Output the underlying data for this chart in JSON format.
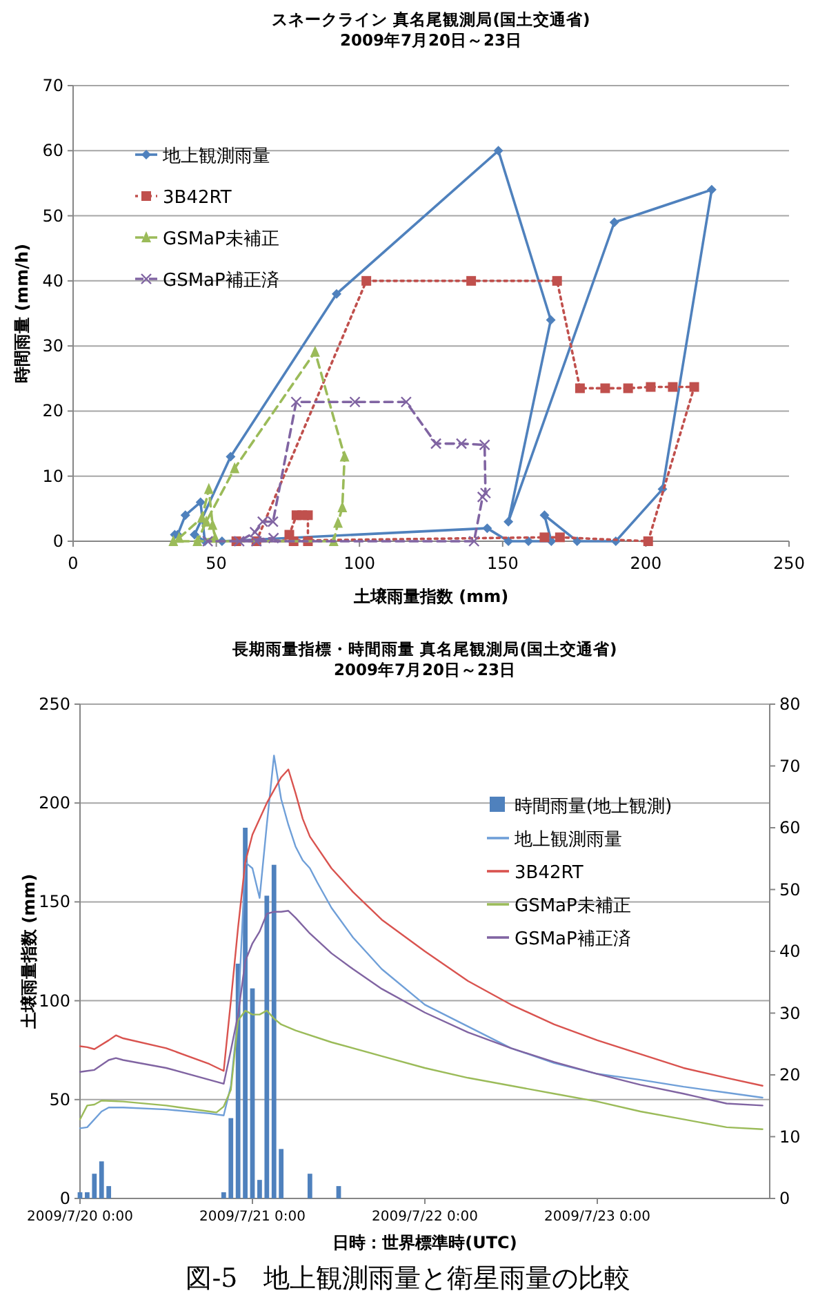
{
  "chart_data": [
    {
      "type": "line",
      "title": "スネークライン 真名尾観測局(国土交通省)\n2009年7月20日～23日",
      "xlabel": "土壌雨量指数 (mm)",
      "ylabel": "時間雨量 (mm/h)",
      "xlim": [
        0,
        250
      ],
      "xticks": [
        0,
        50,
        100,
        150,
        200,
        250
      ],
      "ylim": [
        0,
        70
      ],
      "yticks": [
        0,
        10,
        20,
        30,
        40,
        50,
        60,
        70
      ],
      "grid": "y",
      "legend": "top left",
      "series": [
        {
          "name": "地上観測雨量",
          "color": "#4f81bd",
          "marker": "diamond",
          "line_style": "solid",
          "x": [
            35.5,
            36.5,
            39.2,
            44.5,
            46,
            42.4,
            55,
            92,
            148.5,
            166.8,
            152,
            189,
            223,
            205.8,
            189.5,
            176,
            164.6,
            167,
            159,
            152,
            144.6,
            52
          ],
          "values": [
            1,
            1,
            4,
            6,
            0,
            1,
            13,
            38,
            60,
            34,
            3,
            49,
            54,
            8,
            0,
            0,
            4,
            0,
            0,
            0,
            2,
            0
          ]
        },
        {
          "name": "3B42RT",
          "color": "#c0504d",
          "marker": "square",
          "line_style": "dotted",
          "x": [
            77,
            75.5,
            78,
            80,
            82,
            82,
            64,
            102.4,
            139,
            169,
            177,
            185.8,
            193.8,
            201.7,
            209.4,
            216.9,
            200.8,
            170,
            164.6,
            57
          ],
          "values": [
            0,
            1,
            4,
            4,
            4,
            0,
            0,
            40,
            40,
            40,
            23.5,
            23.5,
            23.5,
            23.7,
            23.7,
            23.7,
            0,
            0.6,
            0.6,
            0
          ]
        },
        {
          "name": "GSMaP未補正",
          "color": "#9bbb59",
          "marker": "triangle",
          "line_style": "dashed",
          "x": [
            37,
            45,
            47.4,
            48.7,
            49.6,
            43.4,
            46.5,
            56.4,
            84.5,
            94.8,
            94,
            92.5,
            91,
            35
          ],
          "values": [
            0.5,
            3.6,
            8,
            2.5,
            0.5,
            0,
            3,
            11.2,
            29.1,
            13,
            5.2,
            2.8,
            0,
            0
          ]
        },
        {
          "name": "GSMaP補正済",
          "color": "#8064a2",
          "marker": "cross",
          "line_style": "dashed",
          "x": [
            64,
            70,
            58,
            63.5,
            66.2,
            69.8,
            77.9,
            98.4,
            116.3,
            126.7,
            135.6,
            143.7,
            144,
            143,
            140,
            47
          ],
          "values": [
            0,
            0.5,
            0,
            1.4,
            3,
            3,
            21.4,
            21.4,
            21.4,
            15,
            15,
            14.8,
            7.4,
            6.8,
            0,
            0
          ]
        }
      ]
    },
    {
      "type": "line",
      "title": "長期雨量指標・時間雨量 真名尾観測局(国土交通省)\n2009年7月20日～23日",
      "xlabel": "日時：世界標準時(UTC)",
      "ylabel": "土壌雨量指数 (mm)",
      "xlim": [
        "2009-07-20T00:00",
        "2009-07-24T00:00"
      ],
      "xticks": [
        {
          "value": "2009-07-20T00:00",
          "label": "2009/7/20 0:00"
        },
        {
          "value": "2009-07-21T00:00",
          "label": "2009/7/21 0:00"
        },
        {
          "value": "2009-07-22T00:00",
          "label": "2009/7/22 0:00"
        },
        {
          "value": "2009-07-23T00:00",
          "label": "2009/7/23 0:00"
        }
      ],
      "ylim": [
        0,
        250
      ],
      "yticks": [
        0,
        50,
        100,
        150,
        200,
        250
      ],
      "y2lim": [
        0,
        80
      ],
      "y2ticks": [
        0,
        10,
        20,
        30,
        40,
        50,
        60,
        70,
        80
      ],
      "grid": "y",
      "legend": "right",
      "marker": "none",
      "annotations": [
        "図-5　地上観測雨量と衛星雨量の比較"
      ],
      "series": [
        {
          "name": "時間雨量(地上観測)",
          "type": "bar",
          "axis": "y2",
          "color": "#4f81bd",
          "x": [
            "2009-07-20T00:00",
            "2009-07-20T01:00",
            "2009-07-20T02:00",
            "2009-07-20T03:00",
            "2009-07-20T04:00",
            "2009-07-20T20:00",
            "2009-07-20T21:00",
            "2009-07-20T22:00",
            "2009-07-20T23:00",
            "2009-07-21T00:00",
            "2009-07-21T01:00",
            "2009-07-21T02:00",
            "2009-07-21T03:00",
            "2009-07-21T04:00",
            "2009-07-21T08:00",
            "2009-07-21T12:00"
          ],
          "values": [
            1,
            1,
            4,
            6,
            2,
            1,
            13,
            38,
            60,
            34,
            3,
            49,
            54,
            8,
            4,
            2
          ]
        },
        {
          "name": "地上観測雨量",
          "color": "#6f9fd8",
          "x": [
            "2009-07-20T00:00",
            "2009-07-20T01:00",
            "2009-07-20T03:00",
            "2009-07-20T04:00",
            "2009-07-20T06:00",
            "2009-07-20T12:00",
            "2009-07-20T18:00",
            "2009-07-20T20:00",
            "2009-07-20T21:00",
            "2009-07-20T22:00",
            "2009-07-20T23:00",
            "2009-07-21T00:00",
            "2009-07-21T01:00",
            "2009-07-21T02:00",
            "2009-07-21T03:00",
            "2009-07-21T04:00",
            "2009-07-21T05:00",
            "2009-07-21T06:00",
            "2009-07-21T07:00",
            "2009-07-21T08:00",
            "2009-07-21T09:00",
            "2009-07-21T11:00",
            "2009-07-21T14:00",
            "2009-07-21T18:00",
            "2009-07-22T00:00",
            "2009-07-22T06:00",
            "2009-07-22T12:00",
            "2009-07-22T18:00",
            "2009-07-23T00:00",
            "2009-07-23T06:00",
            "2009-07-23T12:00",
            "2009-07-23T18:00",
            "2009-07-23T23:00"
          ],
          "values": [
            35.5,
            36,
            44,
            46,
            46,
            45,
            43,
            42,
            57,
            93,
            170,
            167,
            152,
            189,
            224,
            202,
            189,
            178,
            171,
            167,
            160,
            147,
            132,
            116,
            98,
            87,
            76,
            68.5,
            63,
            60,
            56.5,
            53.5,
            51
          ]
        },
        {
          "name": "3B42RT",
          "color": "#d9534f",
          "x": [
            "2009-07-20T00:00",
            "2009-07-20T01:00",
            "2009-07-20T02:00",
            "2009-07-20T04:00",
            "2009-07-20T05:00",
            "2009-07-20T06:00",
            "2009-07-20T12:00",
            "2009-07-20T18:00",
            "2009-07-20T20:00",
            "2009-07-20T21:00",
            "2009-07-20T22:00",
            "2009-07-20T23:00",
            "2009-07-21T00:00",
            "2009-07-21T02:00",
            "2009-07-21T04:00",
            "2009-07-21T05:00",
            "2009-07-21T06:00",
            "2009-07-21T07:00",
            "2009-07-21T08:00",
            "2009-07-21T11:00",
            "2009-07-21T14:00",
            "2009-07-21T18:00",
            "2009-07-22T00:00",
            "2009-07-22T06:00",
            "2009-07-22T12:00",
            "2009-07-22T18:00",
            "2009-07-23T00:00",
            "2009-07-23T06:00",
            "2009-07-23T12:00",
            "2009-07-23T18:00",
            "2009-07-23T23:00"
          ],
          "values": [
            77,
            76.5,
            75.5,
            80,
            82.5,
            81,
            76,
            68,
            64.5,
            100,
            137,
            170,
            184,
            200,
            213,
            217,
            205,
            192,
            183,
            167,
            155,
            141,
            125,
            110,
            98,
            88,
            80,
            73,
            66,
            61,
            57
          ]
        },
        {
          "name": "GSMaP未補正",
          "color": "#9bbb59",
          "x": [
            "2009-07-20T00:00",
            "2009-07-20T01:00",
            "2009-07-20T02:00",
            "2009-07-20T03:00",
            "2009-07-20T06:00",
            "2009-07-20T12:00",
            "2009-07-20T18:00",
            "2009-07-20T19:00",
            "2009-07-20T20:00",
            "2009-07-20T21:00",
            "2009-07-20T22:00",
            "2009-07-20T23:00",
            "2009-07-21T00:00",
            "2009-07-21T01:00",
            "2009-07-21T02:00",
            "2009-07-21T03:00",
            "2009-07-21T04:00",
            "2009-07-21T06:00",
            "2009-07-21T11:00",
            "2009-07-21T18:00",
            "2009-07-22T00:00",
            "2009-07-22T06:00",
            "2009-07-22T12:00",
            "2009-07-22T18:00",
            "2009-07-23T00:00",
            "2009-07-23T06:00",
            "2009-07-23T12:00",
            "2009-07-23T18:00",
            "2009-07-23T23:00"
          ],
          "values": [
            40,
            47,
            47.5,
            49.5,
            49,
            47,
            44,
            43.5,
            46.5,
            55,
            90,
            95,
            93,
            93,
            95,
            91,
            88,
            85,
            79,
            72,
            66,
            61,
            57,
            53,
            49,
            44,
            40,
            36,
            35
          ]
        },
        {
          "name": "GSMaP補正済",
          "color": "#8064a2",
          "x": [
            "2009-07-20T00:00",
            "2009-07-20T01:00",
            "2009-07-20T02:00",
            "2009-07-20T04:00",
            "2009-07-20T05:00",
            "2009-07-20T06:00",
            "2009-07-20T12:00",
            "2009-07-20T18:00",
            "2009-07-20T20:00",
            "2009-07-20T21:00",
            "2009-07-20T22:00",
            "2009-07-20T23:00",
            "2009-07-21T00:00",
            "2009-07-21T01:00",
            "2009-07-21T02:00",
            "2009-07-21T03:00",
            "2009-07-21T04:00",
            "2009-07-21T05:00",
            "2009-07-21T06:00",
            "2009-07-21T08:00",
            "2009-07-21T11:00",
            "2009-07-21T14:00",
            "2009-07-21T18:00",
            "2009-07-22T00:00",
            "2009-07-22T06:00",
            "2009-07-22T12:00",
            "2009-07-22T18:00",
            "2009-07-23T00:00",
            "2009-07-23T06:00",
            "2009-07-23T12:00",
            "2009-07-23T18:00",
            "2009-07-23T23:00"
          ],
          "values": [
            64,
            64.5,
            65,
            70,
            71,
            70,
            66,
            60,
            58,
            75,
            93,
            120,
            129,
            135,
            144,
            145,
            145,
            145.5,
            142,
            134,
            124,
            116,
            106,
            94,
            84,
            76,
            69,
            63,
            57.5,
            53,
            48,
            47
          ]
        }
      ]
    }
  ]
}
